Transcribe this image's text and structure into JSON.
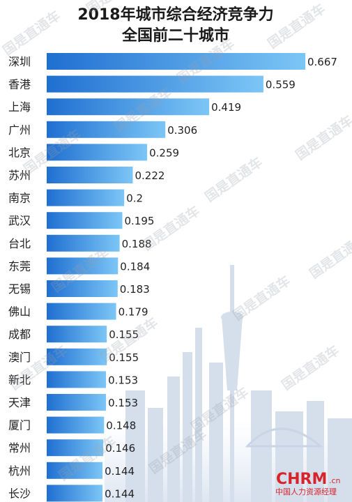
{
  "chart_data": {
    "type": "bar",
    "orientation": "horizontal",
    "title": [
      "2018年城市综合经济竞争力",
      "全国前二十城市"
    ],
    "categories": [
      "深圳",
      "香港",
      "上海",
      "广州",
      "北京",
      "苏州",
      "南京",
      "武汉",
      "台北",
      "东莞",
      "无锡",
      "佛山",
      "成都",
      "澳门",
      "新北",
      "天津",
      "厦门",
      "常州",
      "杭州",
      "长沙"
    ],
    "values": [
      0.667,
      0.559,
      0.419,
      0.306,
      0.259,
      0.222,
      0.2,
      0.195,
      0.188,
      0.184,
      0.183,
      0.179,
      0.155,
      0.155,
      0.153,
      0.153,
      0.148,
      0.146,
      0.144,
      0.144
    ],
    "value_labels": [
      "0.667",
      "0.559",
      "0.419",
      "0.306",
      "0.259",
      "0.222",
      "0.2",
      "0.195",
      "0.188",
      "0.184",
      "0.183",
      "0.179",
      "0.155",
      "0.155",
      "0.153",
      "0.153",
      "0.148",
      "0.146",
      "0.144",
      "0.144"
    ],
    "xlim": [
      0,
      0.667
    ],
    "bar_colors": [
      "#1f6fd1",
      "#7cc6f6"
    ]
  },
  "watermark": "国是直通车",
  "brand": {
    "logo": "CHRM",
    "suffix": ".cn",
    "subtitle": "中国人力资源经理"
  }
}
